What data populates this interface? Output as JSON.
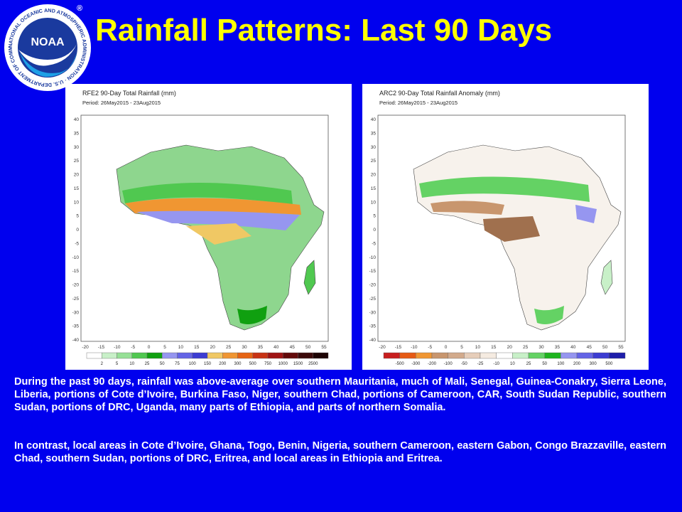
{
  "title": "Rainfall Patterns: Last 90 Days",
  "logo": {
    "text": "NOAA",
    "ring_text": "NATIONAL OCEANIC AND ATMOSPHERIC ADMINISTRATION · U.S. DEPARTMENT OF COMMERCE",
    "registered": "®"
  },
  "maps": [
    {
      "title": "RFE2 90-Day Total Rainfall (mm)",
      "period": "Period: 26May2015 - 23Aug2015",
      "lon_ticks": [
        "-20",
        "-15",
        "-10",
        "-5",
        "0",
        "5",
        "10",
        "15",
        "20",
        "25",
        "30",
        "35",
        "40",
        "45",
        "50",
        "55"
      ],
      "lat_ticks": [
        "40",
        "35",
        "30",
        "25",
        "20",
        "15",
        "10",
        "5",
        "0",
        "-5",
        "-10",
        "-15",
        "-20",
        "-25",
        "-30",
        "-35",
        "-40"
      ],
      "legend_labels": [
        "2",
        "5",
        "10",
        "25",
        "50",
        "75",
        "100",
        "150",
        "200",
        "300",
        "500",
        "750",
        "1000",
        "1500",
        "2500"
      ],
      "legend_colors": [
        "#ffffff",
        "#c8f0c8",
        "#96e096",
        "#50c850",
        "#10a010",
        "#9696f0",
        "#6464e6",
        "#3c3cd2",
        "#f0c864",
        "#f09632",
        "#e66414",
        "#c83214",
        "#a01414",
        "#640a0a",
        "#3c0a0a",
        "#1e0505"
      ]
    },
    {
      "title": "ARC2 90-Day Total Rainfall Anomaly (mm)",
      "period": "Period: 26May2015 - 23Aug2015",
      "lon_ticks": [
        "-20",
        "-15",
        "-10",
        "-5",
        "0",
        "5",
        "10",
        "15",
        "20",
        "25",
        "30",
        "35",
        "40",
        "45",
        "50",
        "55"
      ],
      "lat_ticks": [
        "40",
        "35",
        "30",
        "25",
        "20",
        "15",
        "10",
        "5",
        "0",
        "-5",
        "-10",
        "-15",
        "-20",
        "-25",
        "-30",
        "-35",
        "-40"
      ],
      "legend_labels": [
        "-500",
        "-300",
        "-200",
        "-100",
        "-50",
        "-25",
        "-10",
        "10",
        "25",
        "50",
        "100",
        "200",
        "300",
        "500"
      ],
      "legend_colors": [
        "#c81e1e",
        "#e65a14",
        "#f09632",
        "#c8966e",
        "#d2aa8c",
        "#e6cdb9",
        "#f5ebe1",
        "#ffffff",
        "#c8f0c8",
        "#64d264",
        "#1eb41e",
        "#9696f0",
        "#6464e6",
        "#3c3cd2",
        "#1e1eaa"
      ]
    }
  ],
  "paragraphs": [
    "During the past 90 days, rainfall was above-average over southern Mauritania, much of Mali, Senegal, Guinea-Conakry, Sierra Leone, Liberia, portions of Cote d’Ivoire, Burkina Faso, Niger, southern Chad, portions of Cameroon, CAR, South Sudan Republic, southern Sudan, portions of DRC, Uganda, many parts of Ethiopia, and parts of northern Somalia.",
    "In contrast, local areas in Cote d’Ivoire, Ghana, Togo, Benin, Nigeria, southern Cameroon, eastern Gabon, Congo Brazzaville, eastern Chad, southern Sudan, portions of DRC, Eritrea, and local areas in Ethiopia and Eritrea."
  ]
}
